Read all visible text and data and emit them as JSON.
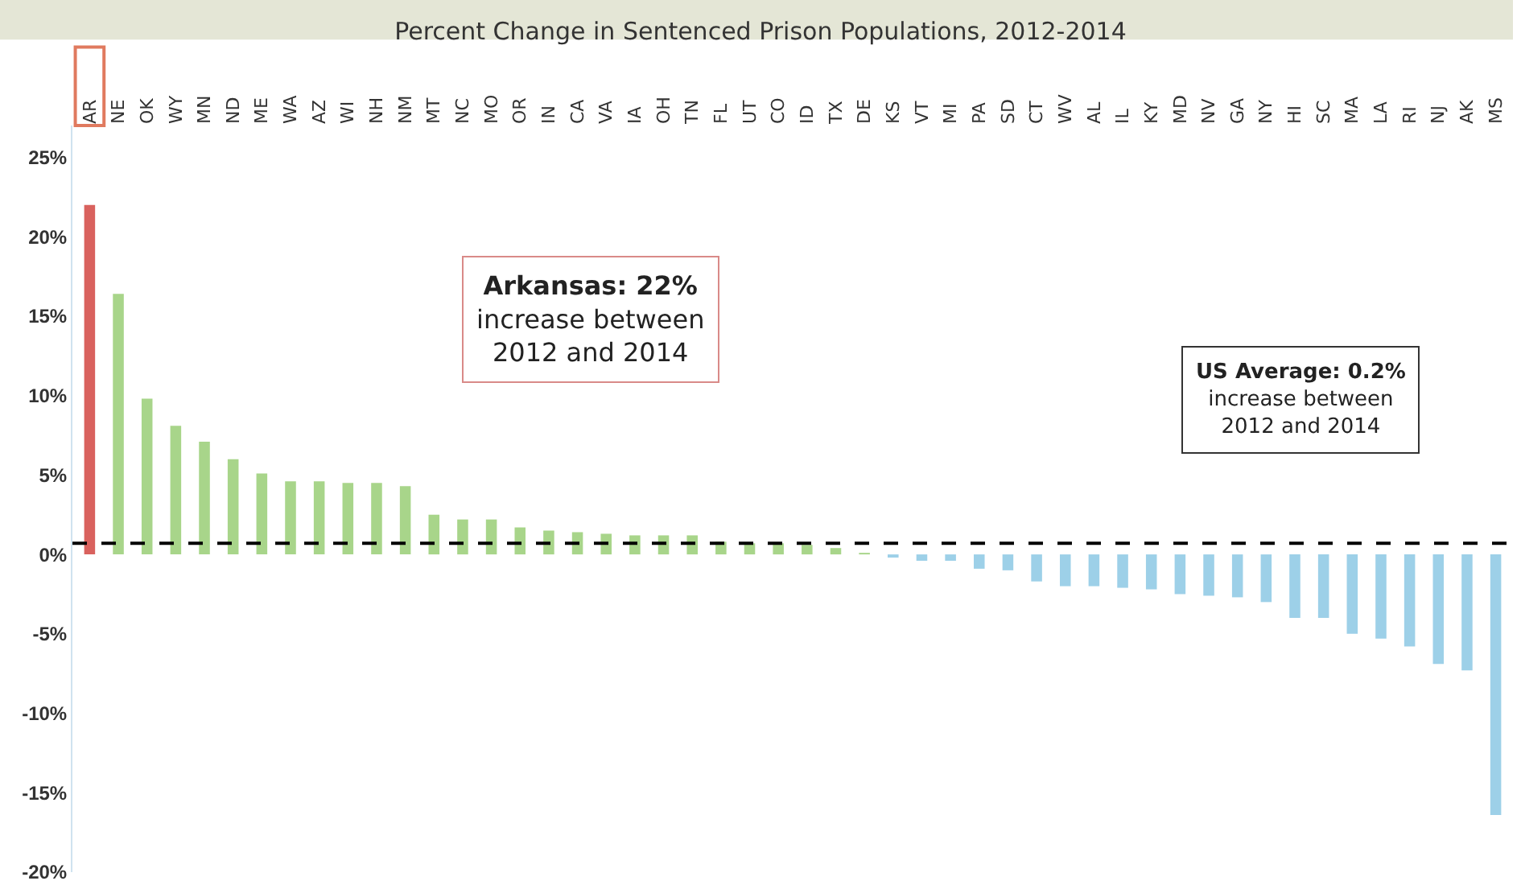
{
  "chart_data": {
    "type": "bar",
    "title": "Percent Change in Sentenced Prison Populations, 2012-2014",
    "categories": [
      "AR",
      "NE",
      "OK",
      "WY",
      "MN",
      "ND",
      "ME",
      "WA",
      "AZ",
      "WI",
      "NH",
      "NM",
      "MT",
      "NC",
      "MO",
      "OR",
      "IN",
      "CA",
      "VA",
      "IA",
      "OH",
      "TN",
      "FL",
      "UT",
      "CO",
      "ID",
      "TX",
      "DE",
      "KS",
      "VT",
      "MI",
      "PA",
      "SD",
      "CT",
      "WV",
      "AL",
      "IL",
      "KY",
      "MD",
      "NV",
      "GA",
      "NY",
      "HI",
      "SC",
      "MA",
      "LA",
      "RI",
      "NJ",
      "AK",
      "MS"
    ],
    "values": [
      22,
      16.4,
      9.8,
      8.1,
      7.1,
      6.0,
      5.1,
      4.6,
      4.6,
      4.5,
      4.5,
      4.3,
      2.5,
      2.2,
      2.2,
      1.7,
      1.5,
      1.4,
      1.3,
      1.2,
      1.2,
      1.2,
      0.8,
      0.7,
      0.7,
      0.6,
      0.4,
      0.1,
      -0.2,
      -0.4,
      -0.4,
      -0.9,
      -1.0,
      -1.7,
      -2.0,
      -2.0,
      -2.1,
      -2.2,
      -2.5,
      -2.6,
      -2.7,
      -3.0,
      -4.0,
      -4.0,
      -5.0,
      -5.3,
      -5.8,
      -6.9,
      -7.3,
      -16.4
    ],
    "colors": [
      "#d9625e",
      "#a8d58a",
      "#a8d58a",
      "#a8d58a",
      "#a8d58a",
      "#a8d58a",
      "#a8d58a",
      "#a8d58a",
      "#a8d58a",
      "#a8d58a",
      "#a8d58a",
      "#a8d58a",
      "#a8d58a",
      "#a8d58a",
      "#a8d58a",
      "#a8d58a",
      "#a8d58a",
      "#a8d58a",
      "#a8d58a",
      "#a8d58a",
      "#a8d58a",
      "#a8d58a",
      "#a8d58a",
      "#a8d58a",
      "#a8d58a",
      "#a8d58a",
      "#a8d58a",
      "#a8d58a",
      "#9dd0e8",
      "#9dd0e8",
      "#9dd0e8",
      "#9dd0e8",
      "#9dd0e8",
      "#9dd0e8",
      "#9dd0e8",
      "#9dd0e8",
      "#9dd0e8",
      "#9dd0e8",
      "#9dd0e8",
      "#9dd0e8",
      "#9dd0e8",
      "#9dd0e8",
      "#9dd0e8",
      "#9dd0e8",
      "#9dd0e8",
      "#9dd0e8",
      "#9dd0e8",
      "#9dd0e8",
      "#9dd0e8",
      "#9dd0e8"
    ],
    "ylim": [
      -20,
      27
    ],
    "yticks": [
      {
        "value": -20,
        "label": "-20%"
      },
      {
        "value": -15,
        "label": "-15%"
      },
      {
        "value": -10,
        "label": "-10%"
      },
      {
        "value": -5,
        "label": "-5%"
      },
      {
        "value": 0,
        "label": "0%"
      },
      {
        "value": 5,
        "label": "5%"
      },
      {
        "value": 10,
        "label": "10%"
      },
      {
        "value": 15,
        "label": "15%"
      },
      {
        "value": 20,
        "label": "20%"
      },
      {
        "value": 25,
        "label": "25%"
      }
    ],
    "grid": false,
    "ref_lines": [
      {
        "axis": "y",
        "value": 0.7,
        "color": "#000000",
        "line_style": "dashed"
      }
    ],
    "annotations": [
      "Arkansas: 22%\nincrease between\n2012 and 2014",
      "US Average: 0.2%\nincrease between\n2012 and 2014"
    ]
  }
}
